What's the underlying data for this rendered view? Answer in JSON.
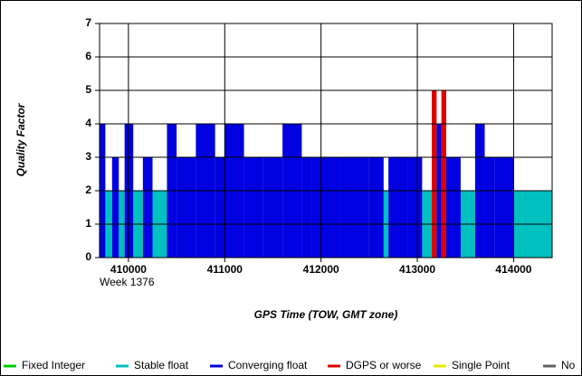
{
  "chart_data": {
    "type": "step-bars",
    "ylabel": "Quality Factor",
    "xlabel": "GPS Time (TOW, GMT zone)",
    "x_sublabel": "Week 1376",
    "xlim": [
      409700,
      414400
    ],
    "xticks": [
      410000,
      411000,
      412000,
      413000,
      414000
    ],
    "ylim": [
      0,
      7
    ],
    "yticks": [
      0,
      1,
      2,
      3,
      4,
      5,
      6,
      7
    ],
    "grid": true,
    "x": [
      409700,
      409760,
      409830,
      409900,
      409960,
      410050,
      410150,
      410250,
      410400,
      410500,
      410700,
      410900,
      411000,
      411200,
      411400,
      411600,
      411800,
      411900,
      412200,
      412500,
      412650,
      412700,
      412900,
      413050,
      413150,
      413200,
      413250,
      413300,
      413450,
      413600,
      413700,
      413800,
      414000,
      414400
    ],
    "series": [
      {
        "name": "Fixed Integer",
        "color": "#00cc00",
        "values": [
          null,
          null,
          null,
          null,
          null,
          null,
          null,
          null,
          null,
          null,
          null,
          null,
          null,
          null,
          null,
          null,
          null,
          null,
          null,
          null,
          null,
          null,
          null,
          null,
          null,
          null,
          null,
          null,
          null,
          null,
          null,
          null,
          null,
          null
        ]
      },
      {
        "name": "Stable float",
        "color": "#00c0c0",
        "values": [
          null,
          2,
          null,
          2,
          null,
          2,
          null,
          2,
          null,
          null,
          null,
          null,
          null,
          null,
          null,
          null,
          null,
          null,
          null,
          null,
          2,
          null,
          null,
          2,
          null,
          null,
          null,
          null,
          2,
          null,
          null,
          null,
          2,
          null
        ]
      },
      {
        "name": "Converging float",
        "color": "#0000e0",
        "values": [
          4,
          null,
          3,
          null,
          4,
          null,
          3,
          null,
          4,
          3,
          4,
          3,
          4,
          3,
          3,
          4,
          3,
          3,
          3,
          3,
          null,
          3,
          3,
          null,
          null,
          4,
          null,
          3,
          null,
          4,
          3,
          3,
          null,
          null
        ]
      },
      {
        "name": "DGPS or worse",
        "color": "#e00000",
        "values": [
          null,
          null,
          null,
          null,
          null,
          null,
          null,
          null,
          null,
          null,
          null,
          null,
          null,
          null,
          null,
          null,
          null,
          null,
          null,
          null,
          null,
          null,
          null,
          null,
          5,
          null,
          5,
          null,
          null,
          null,
          null,
          null,
          null,
          null
        ]
      },
      {
        "name": "Single Point",
        "color": "#e8e800",
        "values": [
          null,
          null,
          null,
          null,
          null,
          null,
          null,
          null,
          null,
          null,
          null,
          null,
          null,
          null,
          null,
          null,
          null,
          null,
          null,
          null,
          null,
          null,
          null,
          null,
          null,
          null,
          null,
          null,
          null,
          null,
          null,
          null,
          null,
          null
        ]
      },
      {
        "name": "No",
        "color": "#606060",
        "values": [
          null,
          null,
          null,
          null,
          null,
          null,
          null,
          null,
          null,
          null,
          null,
          null,
          null,
          null,
          null,
          null,
          null,
          null,
          null,
          null,
          null,
          null,
          null,
          null,
          null,
          null,
          null,
          null,
          null,
          null,
          null,
          null,
          null,
          null
        ]
      }
    ]
  }
}
